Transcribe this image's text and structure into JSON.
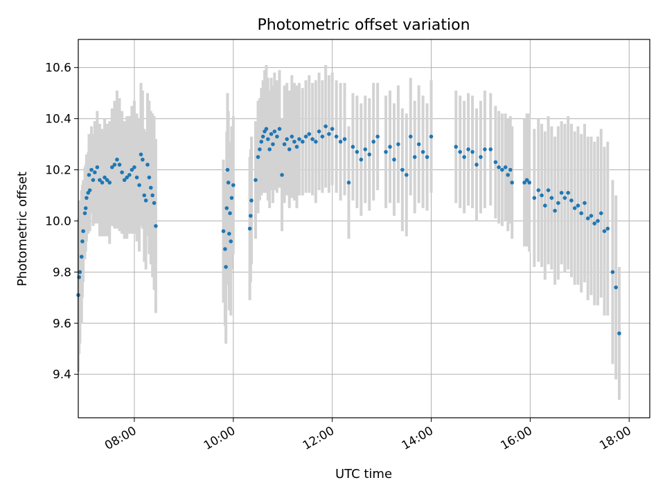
{
  "chart_data": {
    "type": "scatter",
    "title": "Photometric offset variation",
    "xlabel": "UTC time",
    "ylabel": "Photometric offset",
    "xlim": [
      "06:52",
      "18:25"
    ],
    "ylim": [
      9.23,
      10.71
    ],
    "x_ticks": [
      "08:00",
      "10:00",
      "12:00",
      "14:00",
      "16:00",
      "18:00"
    ],
    "y_ticks": [
      9.4,
      9.6,
      9.8,
      10.0,
      10.2,
      10.4,
      10.6
    ],
    "grid": true,
    "colors": {
      "points": "#1f77b4",
      "errorbars": "#d3d3d3",
      "grid": "#b0b0b0"
    },
    "series": [
      {
        "error_bars": true,
        "points": [
          {
            "t": "06:52",
            "y": 9.71,
            "err": 0.3
          },
          {
            "t": "06:53",
            "y": 9.78,
            "err": 0.3
          },
          {
            "t": "06:54",
            "y": 9.8,
            "err": 0.28
          },
          {
            "t": "06:56",
            "y": 9.86,
            "err": 0.26
          },
          {
            "t": "06:57",
            "y": 9.92,
            "err": 0.22
          },
          {
            "t": "06:58",
            "y": 9.96,
            "err": 0.2
          },
          {
            "t": "07:00",
            "y": 10.03,
            "err": 0.18
          },
          {
            "t": "07:01",
            "y": 10.05,
            "err": 0.17
          },
          {
            "t": "07:02",
            "y": 10.09,
            "err": 0.17
          },
          {
            "t": "07:04",
            "y": 10.11,
            "err": 0.16
          },
          {
            "t": "07:05",
            "y": 10.18,
            "err": 0.16
          },
          {
            "t": "07:06",
            "y": 10.12,
            "err": 0.16
          },
          {
            "t": "07:08",
            "y": 10.2,
            "err": 0.17
          },
          {
            "t": "07:10",
            "y": 10.16,
            "err": 0.18
          },
          {
            "t": "07:12",
            "y": 10.19,
            "err": 0.2
          },
          {
            "t": "07:15",
            "y": 10.21,
            "err": 0.22
          },
          {
            "t": "07:18",
            "y": 10.16,
            "err": 0.22
          },
          {
            "t": "07:21",
            "y": 10.15,
            "err": 0.21
          },
          {
            "t": "07:24",
            "y": 10.17,
            "err": 0.23
          },
          {
            "t": "07:27",
            "y": 10.16,
            "err": 0.22
          },
          {
            "t": "07:30",
            "y": 10.15,
            "err": 0.24
          },
          {
            "t": "07:33",
            "y": 10.21,
            "err": 0.23
          },
          {
            "t": "07:36",
            "y": 10.22,
            "err": 0.25
          },
          {
            "t": "07:39",
            "y": 10.24,
            "err": 0.27
          },
          {
            "t": "07:42",
            "y": 10.22,
            "err": 0.26
          },
          {
            "t": "07:45",
            "y": 10.19,
            "err": 0.24
          },
          {
            "t": "07:48",
            "y": 10.16,
            "err": 0.23
          },
          {
            "t": "07:51",
            "y": 10.17,
            "err": 0.24
          },
          {
            "t": "07:54",
            "y": 10.18,
            "err": 0.23
          },
          {
            "t": "07:57",
            "y": 10.2,
            "err": 0.25
          },
          {
            "t": "08:00",
            "y": 10.21,
            "err": 0.26
          },
          {
            "t": "08:03",
            "y": 10.17,
            "err": 0.25
          },
          {
            "t": "08:06",
            "y": 10.14,
            "err": 0.26
          },
          {
            "t": "08:08",
            "y": 10.26,
            "err": 0.28
          },
          {
            "t": "08:10",
            "y": 10.24,
            "err": 0.27
          },
          {
            "t": "08:12",
            "y": 10.1,
            "err": 0.26
          },
          {
            "t": "08:14",
            "y": 10.08,
            "err": 0.27
          },
          {
            "t": "08:16",
            "y": 10.22,
            "err": 0.28
          },
          {
            "t": "08:18",
            "y": 10.17,
            "err": 0.3
          },
          {
            "t": "08:20",
            "y": 10.13,
            "err": 0.3
          },
          {
            "t": "08:22",
            "y": 10.1,
            "err": 0.32
          },
          {
            "t": "08:24",
            "y": 10.07,
            "err": 0.34
          },
          {
            "t": "08:26",
            "y": 9.98,
            "err": 0.34
          },
          {
            "t": "09:48",
            "y": 9.96,
            "err": 0.28
          },
          {
            "t": "09:50",
            "y": 9.89,
            "err": 0.3
          },
          {
            "t": "09:51",
            "y": 9.82,
            "err": 0.3
          },
          {
            "t": "09:52",
            "y": 10.05,
            "err": 0.3
          },
          {
            "t": "09:53",
            "y": 10.2,
            "err": 0.3
          },
          {
            "t": "09:54",
            "y": 10.15,
            "err": 0.28
          },
          {
            "t": "09:55",
            "y": 9.95,
            "err": 0.3
          },
          {
            "t": "09:56",
            "y": 10.03,
            "err": 0.28
          },
          {
            "t": "09:57",
            "y": 9.92,
            "err": 0.29
          },
          {
            "t": "09:58",
            "y": 10.09,
            "err": 0.28
          },
          {
            "t": "10:00",
            "y": 10.14,
            "err": 0.27
          },
          {
            "t": "10:20",
            "y": 9.97,
            "err": 0.28
          },
          {
            "t": "10:21",
            "y": 10.02,
            "err": 0.26
          },
          {
            "t": "10:22",
            "y": 10.08,
            "err": 0.25
          },
          {
            "t": "10:27",
            "y": 10.16,
            "err": 0.23
          },
          {
            "t": "10:30",
            "y": 10.25,
            "err": 0.22
          },
          {
            "t": "10:32",
            "y": 10.28,
            "err": 0.2
          },
          {
            "t": "10:34",
            "y": 10.31,
            "err": 0.21
          },
          {
            "t": "10:36",
            "y": 10.33,
            "err": 0.22
          },
          {
            "t": "10:38",
            "y": 10.35,
            "err": 0.24
          },
          {
            "t": "10:40",
            "y": 10.36,
            "err": 0.25
          },
          {
            "t": "10:42",
            "y": 10.32,
            "err": 0.24
          },
          {
            "t": "10:44",
            "y": 10.28,
            "err": 0.23
          },
          {
            "t": "10:46",
            "y": 10.34,
            "err": 0.22
          },
          {
            "t": "10:48",
            "y": 10.3,
            "err": 0.23
          },
          {
            "t": "10:50",
            "y": 10.35,
            "err": 0.23
          },
          {
            "t": "10:53",
            "y": 10.33,
            "err": 0.22
          },
          {
            "t": "10:56",
            "y": 10.36,
            "err": 0.23
          },
          {
            "t": "10:59",
            "y": 10.18,
            "err": 0.22
          },
          {
            "t": "11:02",
            "y": 10.3,
            "err": 0.23
          },
          {
            "t": "11:05",
            "y": 10.32,
            "err": 0.22
          },
          {
            "t": "11:08",
            "y": 10.28,
            "err": 0.23
          },
          {
            "t": "11:11",
            "y": 10.33,
            "err": 0.24
          },
          {
            "t": "11:14",
            "y": 10.31,
            "err": 0.23
          },
          {
            "t": "11:17",
            "y": 10.29,
            "err": 0.24
          },
          {
            "t": "11:20",
            "y": 10.32,
            "err": 0.22
          },
          {
            "t": "11:24",
            "y": 10.31,
            "err": 0.21
          },
          {
            "t": "11:28",
            "y": 10.33,
            "err": 0.22
          },
          {
            "t": "11:32",
            "y": 10.34,
            "err": 0.23
          },
          {
            "t": "11:36",
            "y": 10.32,
            "err": 0.22
          },
          {
            "t": "11:40",
            "y": 10.31,
            "err": 0.24
          },
          {
            "t": "11:44",
            "y": 10.35,
            "err": 0.23
          },
          {
            "t": "11:48",
            "y": 10.33,
            "err": 0.22
          },
          {
            "t": "11:52",
            "y": 10.37,
            "err": 0.24
          },
          {
            "t": "11:56",
            "y": 10.34,
            "err": 0.23
          },
          {
            "t": "12:00",
            "y": 10.36,
            "err": 0.22
          },
          {
            "t": "12:05",
            "y": 10.33,
            "err": 0.22
          },
          {
            "t": "12:10",
            "y": 10.31,
            "err": 0.23
          },
          {
            "t": "12:15",
            "y": 10.32,
            "err": 0.22
          },
          {
            "t": "12:20",
            "y": 10.15,
            "err": 0.22
          },
          {
            "t": "12:25",
            "y": 10.29,
            "err": 0.21
          },
          {
            "t": "12:30",
            "y": 10.27,
            "err": 0.22
          },
          {
            "t": "12:35",
            "y": 10.24,
            "err": 0.22
          },
          {
            "t": "12:40",
            "y": 10.28,
            "err": 0.21
          },
          {
            "t": "12:45",
            "y": 10.26,
            "err": 0.22
          },
          {
            "t": "12:50",
            "y": 10.31,
            "err": 0.23
          },
          {
            "t": "12:55",
            "y": 10.33,
            "err": 0.21
          },
          {
            "t": "13:05",
            "y": 10.27,
            "err": 0.22
          },
          {
            "t": "13:10",
            "y": 10.29,
            "err": 0.22
          },
          {
            "t": "13:15",
            "y": 10.24,
            "err": 0.22
          },
          {
            "t": "13:20",
            "y": 10.3,
            "err": 0.23
          },
          {
            "t": "13:25",
            "y": 10.2,
            "err": 0.24
          },
          {
            "t": "13:30",
            "y": 10.18,
            "err": 0.24
          },
          {
            "t": "13:35",
            "y": 10.33,
            "err": 0.23
          },
          {
            "t": "13:40",
            "y": 10.25,
            "err": 0.22
          },
          {
            "t": "13:45",
            "y": 10.3,
            "err": 0.23
          },
          {
            "t": "13:50",
            "y": 10.27,
            "err": 0.22
          },
          {
            "t": "13:55",
            "y": 10.25,
            "err": 0.21
          },
          {
            "t": "14:00",
            "y": 10.33,
            "err": 0.22
          },
          {
            "t": "14:30",
            "y": 10.29,
            "err": 0.22
          },
          {
            "t": "14:35",
            "y": 10.27,
            "err": 0.22
          },
          {
            "t": "14:40",
            "y": 10.25,
            "err": 0.22
          },
          {
            "t": "14:45",
            "y": 10.28,
            "err": 0.22
          },
          {
            "t": "14:50",
            "y": 10.27,
            "err": 0.22
          },
          {
            "t": "14:55",
            "y": 10.22,
            "err": 0.22
          },
          {
            "t": "15:00",
            "y": 10.25,
            "err": 0.22
          },
          {
            "t": "15:05",
            "y": 10.28,
            "err": 0.23
          },
          {
            "t": "15:12",
            "y": 10.28,
            "err": 0.22
          },
          {
            "t": "15:18",
            "y": 10.23,
            "err": 0.22
          },
          {
            "t": "15:22",
            "y": 10.21,
            "err": 0.22
          },
          {
            "t": "15:26",
            "y": 10.2,
            "err": 0.22
          },
          {
            "t": "15:30",
            "y": 10.21,
            "err": 0.21
          },
          {
            "t": "15:33",
            "y": 10.18,
            "err": 0.22
          },
          {
            "t": "15:36",
            "y": 10.2,
            "err": 0.21
          },
          {
            "t": "15:38",
            "y": 10.15,
            "err": 0.22
          },
          {
            "t": "15:53",
            "y": 10.15,
            "err": 0.25
          },
          {
            "t": "15:56",
            "y": 10.16,
            "err": 0.26
          },
          {
            "t": "15:59",
            "y": 10.15,
            "err": 0.27
          },
          {
            "t": "16:05",
            "y": 10.09,
            "err": 0.27
          },
          {
            "t": "16:10",
            "y": 10.12,
            "err": 0.28
          },
          {
            "t": "16:14",
            "y": 10.1,
            "err": 0.28
          },
          {
            "t": "16:18",
            "y": 10.06,
            "err": 0.29
          },
          {
            "t": "16:22",
            "y": 10.12,
            "err": 0.29
          },
          {
            "t": "16:26",
            "y": 10.09,
            "err": 0.28
          },
          {
            "t": "16:30",
            "y": 10.04,
            "err": 0.29
          },
          {
            "t": "16:34",
            "y": 10.07,
            "err": 0.3
          },
          {
            "t": "16:38",
            "y": 10.11,
            "err": 0.28
          },
          {
            "t": "16:42",
            "y": 10.09,
            "err": 0.29
          },
          {
            "t": "16:46",
            "y": 10.11,
            "err": 0.3
          },
          {
            "t": "16:50",
            "y": 10.08,
            "err": 0.3
          },
          {
            "t": "16:54",
            "y": 10.05,
            "err": 0.3
          },
          {
            "t": "16:58",
            "y": 10.06,
            "err": 0.31
          },
          {
            "t": "17:02",
            "y": 10.03,
            "err": 0.31
          },
          {
            "t": "17:06",
            "y": 10.07,
            "err": 0.31
          },
          {
            "t": "17:10",
            "y": 10.01,
            "err": 0.32
          },
          {
            "t": "17:14",
            "y": 10.02,
            "err": 0.31
          },
          {
            "t": "17:18",
            "y": 9.99,
            "err": 0.32
          },
          {
            "t": "17:22",
            "y": 10.0,
            "err": 0.33
          },
          {
            "t": "17:26",
            "y": 10.03,
            "err": 0.33
          },
          {
            "t": "17:30",
            "y": 9.96,
            "err": 0.33
          },
          {
            "t": "17:34",
            "y": 9.97,
            "err": 0.34
          },
          {
            "t": "17:40",
            "y": 9.8,
            "err": 0.36
          },
          {
            "t": "17:44",
            "y": 9.74,
            "err": 0.36
          },
          {
            "t": "17:48",
            "y": 9.56,
            "err": 0.26
          }
        ]
      }
    ]
  }
}
